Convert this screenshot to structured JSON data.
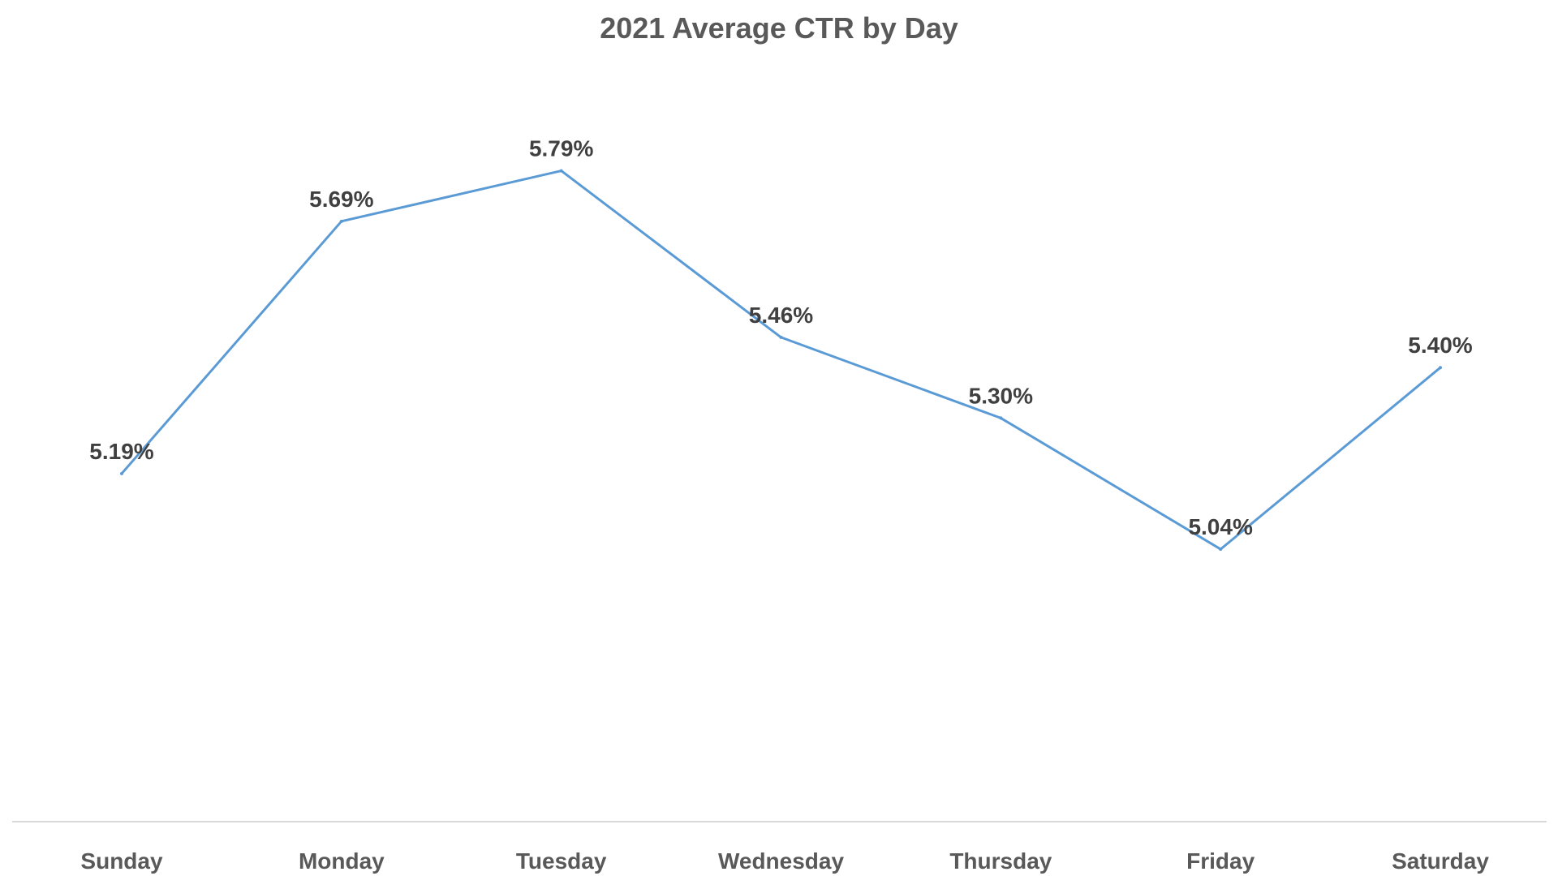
{
  "chart_data": {
    "type": "line",
    "title": "2021 Average CTR by Day",
    "xlabel": "",
    "ylabel": "",
    "categories": [
      "Sunday",
      "Monday",
      "Tuesday",
      "Wednesday",
      "Thursday",
      "Friday",
      "Saturday"
    ],
    "series": [
      {
        "name": "Average CTR",
        "values": [
          5.19,
          5.69,
          5.79,
          5.46,
          5.3,
          5.04,
          5.4
        ],
        "labels": [
          "5.19%",
          "5.69%",
          "5.79%",
          "5.46%",
          "5.30%",
          "5.04%",
          "5.40%"
        ]
      }
    ],
    "ylim": [
      4.5,
      6.0
    ],
    "grid": false,
    "legend": "none"
  },
  "colors": {
    "line": "#5B9BD5",
    "axis": "#D9D9D9",
    "title": "#595959",
    "tick": "#595959",
    "label": "#404040"
  }
}
